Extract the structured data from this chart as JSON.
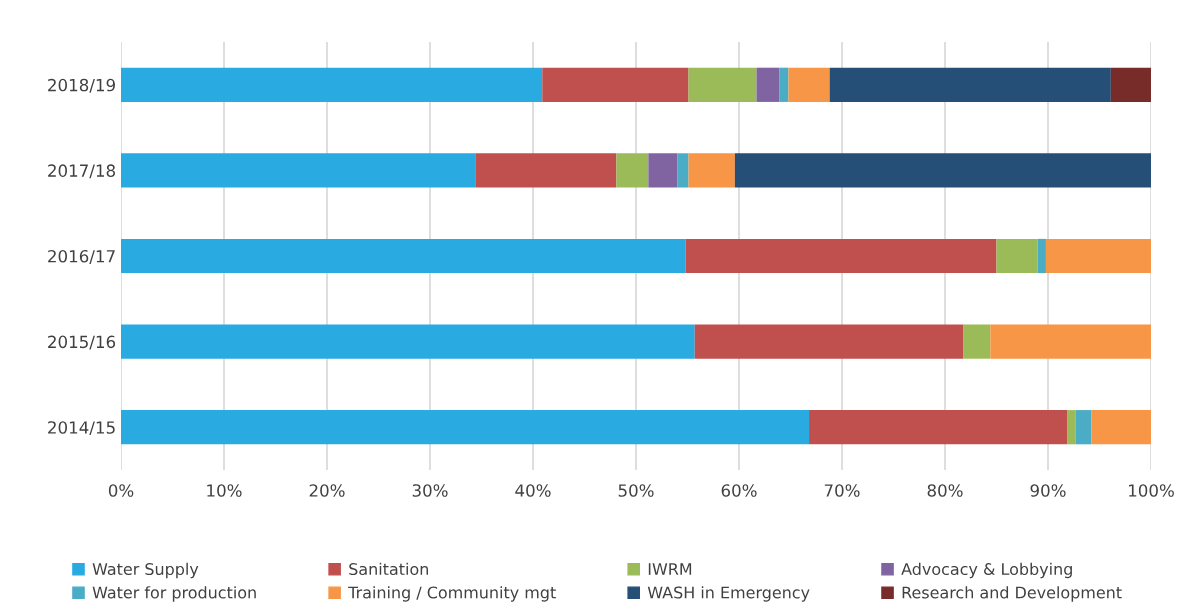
{
  "chart_data": {
    "type": "bar",
    "orientation": "horizontal",
    "stacked": true,
    "categories": [
      "2018/19",
      "2017/18",
      "2016/17",
      "2015/16",
      "2014/15"
    ],
    "series": [
      {
        "name": "Water Supply",
        "color": "#29abe2",
        "values": [
          40.9,
          34.4,
          54.8,
          55.7,
          66.8
        ]
      },
      {
        "name": "Sanitation",
        "color": "#c0504d",
        "values": [
          14.2,
          13.7,
          30.2,
          26.1,
          25.1
        ]
      },
      {
        "name": "IWRM",
        "color": "#9bbb59",
        "values": [
          6.6,
          3.1,
          4.0,
          2.6,
          0.8
        ]
      },
      {
        "name": "Advocacy & Lobbying",
        "color": "#8064a2",
        "values": [
          2.2,
          2.8,
          0,
          0,
          0
        ]
      },
      {
        "name": "Water for production",
        "color": "#4bacc6",
        "values": [
          0.9,
          1.1,
          0.8,
          0,
          1.5
        ]
      },
      {
        "name": "Training / Community mgt",
        "color": "#f79646",
        "values": [
          4.0,
          4.5,
          10.2,
          15.6,
          5.8
        ]
      },
      {
        "name": "WASH in Emergency",
        "color": "#254f77",
        "values": [
          27.3,
          40.4,
          0,
          0,
          0
        ]
      },
      {
        "name": "Research and Development",
        "color": "#772c2a",
        "values": [
          3.9,
          0,
          0,
          0,
          0
        ]
      }
    ],
    "xlim": [
      0,
      100
    ],
    "xticks": [
      {
        "value": 0,
        "label": "0%"
      },
      {
        "value": 10,
        "label": "10%"
      },
      {
        "value": 20,
        "label": "20%"
      },
      {
        "value": 30,
        "label": "30%"
      },
      {
        "value": 40,
        "label": "40%"
      },
      {
        "value": 50,
        "label": "50%"
      },
      {
        "value": 60,
        "label": "60%"
      },
      {
        "value": 70,
        "label": "70%"
      },
      {
        "value": 80,
        "label": "80%"
      },
      {
        "value": 90,
        "label": "90%"
      },
      {
        "value": 100,
        "label": "100%"
      }
    ],
    "grid": "x",
    "legend": "bottom"
  }
}
